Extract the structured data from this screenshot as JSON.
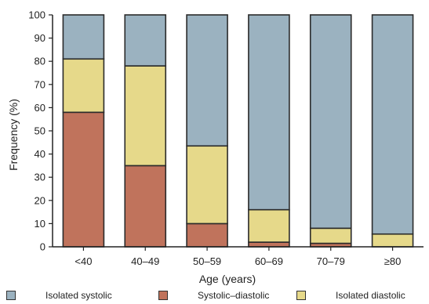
{
  "chart_data": {
    "type": "bar",
    "stacked": true,
    "title": "",
    "xlabel": "Age (years)",
    "ylabel": "Frequency (%)",
    "ylim": [
      0,
      100
    ],
    "yticks": [
      "0",
      "10",
      "20",
      "30",
      "40",
      "50",
      "60",
      "70",
      "80",
      "90",
      "100"
    ],
    "categories": [
      "<40",
      "40–49",
      "50–59",
      "60–69",
      "70–79",
      "≥80"
    ],
    "series": [
      {
        "name": "Systolic–diastolic",
        "color": "#c0735c",
        "values": [
          58,
          35,
          10,
          2,
          1.5,
          0
        ]
      },
      {
        "name": "Isolated diastolic",
        "color": "#e6d98a",
        "values": [
          23,
          43,
          33.5,
          14,
          6.5,
          5.5
        ]
      },
      {
        "name": "Isolated systolic",
        "color": "#9bb2c0",
        "values": [
          19,
          22,
          56.5,
          84,
          92,
          94.5
        ]
      }
    ],
    "grid": false,
    "legend_position": "bottom"
  },
  "legend": [
    {
      "label": "Isolated systolic",
      "color": "#9bb2c0"
    },
    {
      "label": "Systolic–diastolic",
      "color": "#c0735c"
    },
    {
      "label": "Isolated diastolic",
      "color": "#e6d98a"
    }
  ]
}
